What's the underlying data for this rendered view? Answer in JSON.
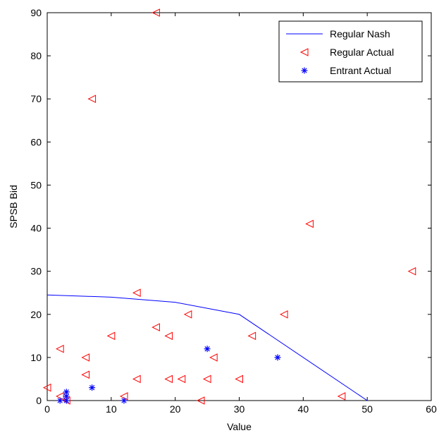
{
  "chart_data": {
    "type": "line+scatter",
    "title": "",
    "xlabel": "Value",
    "ylabel": "SPSB Bid",
    "xlim": [
      0,
      60
    ],
    "ylim": [
      0,
      90
    ],
    "xticks": [
      "0",
      "10",
      "20",
      "30",
      "40",
      "50",
      "60"
    ],
    "yticks": [
      "0",
      "10",
      "20",
      "30",
      "40",
      "50",
      "60",
      "70",
      "80",
      "90"
    ],
    "grid": false,
    "legend_position": "top-right",
    "series": [
      {
        "name": "Regular Nash",
        "type": "line",
        "color": "#0000ff",
        "marker": "none",
        "points": [
          [
            0,
            24.5
          ],
          [
            10,
            24
          ],
          [
            20,
            22.8
          ],
          [
            30,
            20
          ],
          [
            50,
            0
          ]
        ]
      },
      {
        "name": "Regular Actual",
        "type": "scatter",
        "color": "#ff0000",
        "marker": "triangle-left",
        "points": [
          [
            17,
            90
          ],
          [
            7,
            70
          ],
          [
            41,
            41
          ],
          [
            57,
            30
          ],
          [
            14,
            25
          ],
          [
            37,
            20
          ],
          [
            22,
            20
          ],
          [
            17,
            17
          ],
          [
            10,
            15
          ],
          [
            19,
            15
          ],
          [
            32,
            15
          ],
          [
            2,
            12
          ],
          [
            6,
            10
          ],
          [
            26,
            10
          ],
          [
            6,
            6
          ],
          [
            14,
            5
          ],
          [
            19,
            5
          ],
          [
            21,
            5
          ],
          [
            25,
            5
          ],
          [
            30,
            5
          ],
          [
            0,
            3
          ],
          [
            12,
            1
          ],
          [
            46,
            1
          ],
          [
            2,
            1
          ],
          [
            24,
            0
          ],
          [
            3,
            0
          ]
        ]
      },
      {
        "name": "Entrant Actual",
        "type": "scatter",
        "color": "#0000ff",
        "marker": "asterisk",
        "points": [
          [
            3,
            2
          ],
          [
            3,
            1
          ],
          [
            2,
            0
          ],
          [
            3,
            0
          ],
          [
            7,
            3
          ],
          [
            12,
            0
          ],
          [
            25,
            12
          ],
          [
            36,
            10
          ]
        ]
      }
    ]
  }
}
